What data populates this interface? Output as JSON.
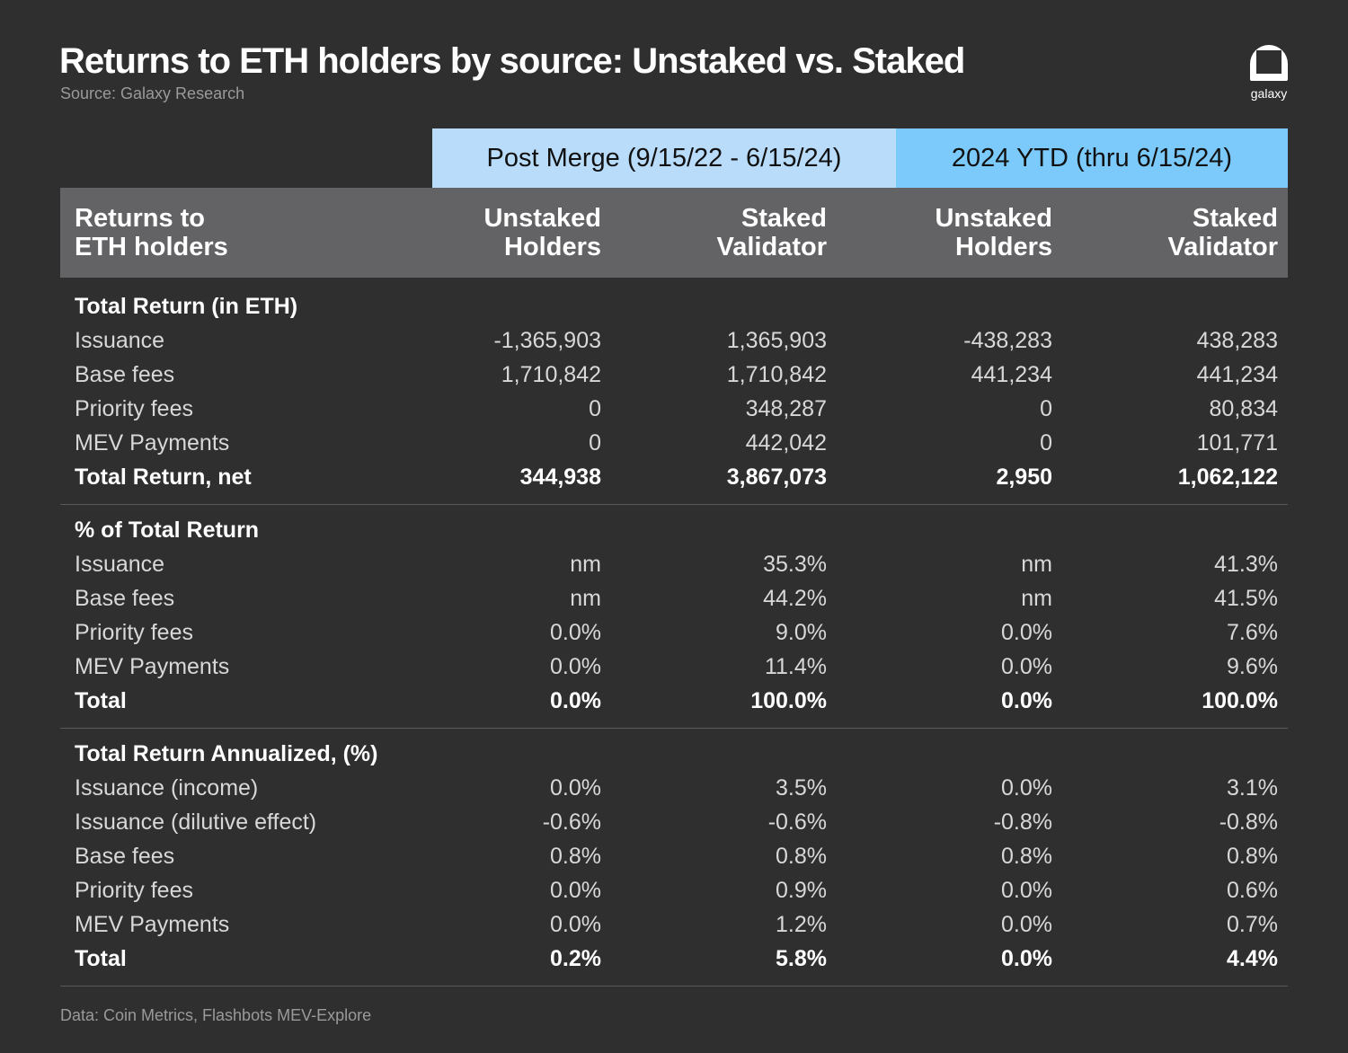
{
  "title": "Returns to ETH holders by source: Unstaked vs. Staked",
  "source": "Source: Galaxy Research",
  "logo_text": "galaxy",
  "footer": "Data: Coin Metrics, Flashbots MEV-Explore",
  "colors": {
    "background": "#2f2f30",
    "header": "#636366",
    "period1": "#b9dcfb",
    "period2": "#7ccafb"
  },
  "chart_data": {
    "type": "table",
    "periods": [
      "Post Merge (9/15/22 - 6/15/24)",
      "2024 YTD  (thru 6/15/24)"
    ],
    "row_header": "Returns to\nETH holders",
    "columns": [
      "Unstaked\nHolders",
      "Staked\nValidator",
      "Unstaked\nHolders",
      "Staked\nValidator"
    ],
    "sections": [
      {
        "title": "Total Return (in ETH)",
        "rows": [
          {
            "label": "Issuance",
            "values": [
              "-1,365,903",
              "1,365,903",
              "-438,283",
              "438,283"
            ]
          },
          {
            "label": "Base fees",
            "values": [
              "1,710,842",
              "1,710,842",
              "441,234",
              "441,234"
            ]
          },
          {
            "label": "Priority fees",
            "values": [
              "0",
              "348,287",
              "0",
              "80,834"
            ]
          },
          {
            "label": "MEV Payments",
            "values": [
              "0",
              "442,042",
              "0",
              "101,771"
            ]
          },
          {
            "label": "Total Return, net",
            "values": [
              "344,938",
              "3,867,073",
              "2,950",
              "1,062,122"
            ],
            "bold": true
          }
        ]
      },
      {
        "title": "% of Total Return",
        "rows": [
          {
            "label": "Issuance",
            "values": [
              "nm",
              "35.3%",
              "nm",
              "41.3%"
            ]
          },
          {
            "label": "Base fees",
            "values": [
              "nm",
              "44.2%",
              "nm",
              "41.5%"
            ]
          },
          {
            "label": "Priority fees",
            "values": [
              "0.0%",
              "9.0%",
              "0.0%",
              "7.6%"
            ]
          },
          {
            "label": "MEV Payments",
            "values": [
              "0.0%",
              "11.4%",
              "0.0%",
              "9.6%"
            ]
          },
          {
            "label": "Total",
            "values": [
              "0.0%",
              "100.0%",
              "0.0%",
              "100.0%"
            ],
            "bold": true
          }
        ]
      },
      {
        "title": "Total Return Annualized, (%)",
        "rows": [
          {
            "label": "Issuance (income)",
            "values": [
              "0.0%",
              "3.5%",
              "0.0%",
              "3.1%"
            ]
          },
          {
            "label": "Issuance (dilutive effect)",
            "values": [
              "-0.6%",
              "-0.6%",
              "-0.8%",
              "-0.8%"
            ]
          },
          {
            "label": "Base fees",
            "values": [
              "0.8%",
              "0.8%",
              "0.8%",
              "0.8%"
            ]
          },
          {
            "label": "Priority fees",
            "values": [
              "0.0%",
              "0.9%",
              "0.0%",
              "0.6%"
            ]
          },
          {
            "label": "MEV Payments",
            "values": [
              "0.0%",
              "1.2%",
              "0.0%",
              "0.7%"
            ]
          },
          {
            "label": "Total",
            "values": [
              "0.2%",
              "5.8%",
              "0.0%",
              "4.4%"
            ],
            "bold": true
          }
        ]
      }
    ]
  }
}
